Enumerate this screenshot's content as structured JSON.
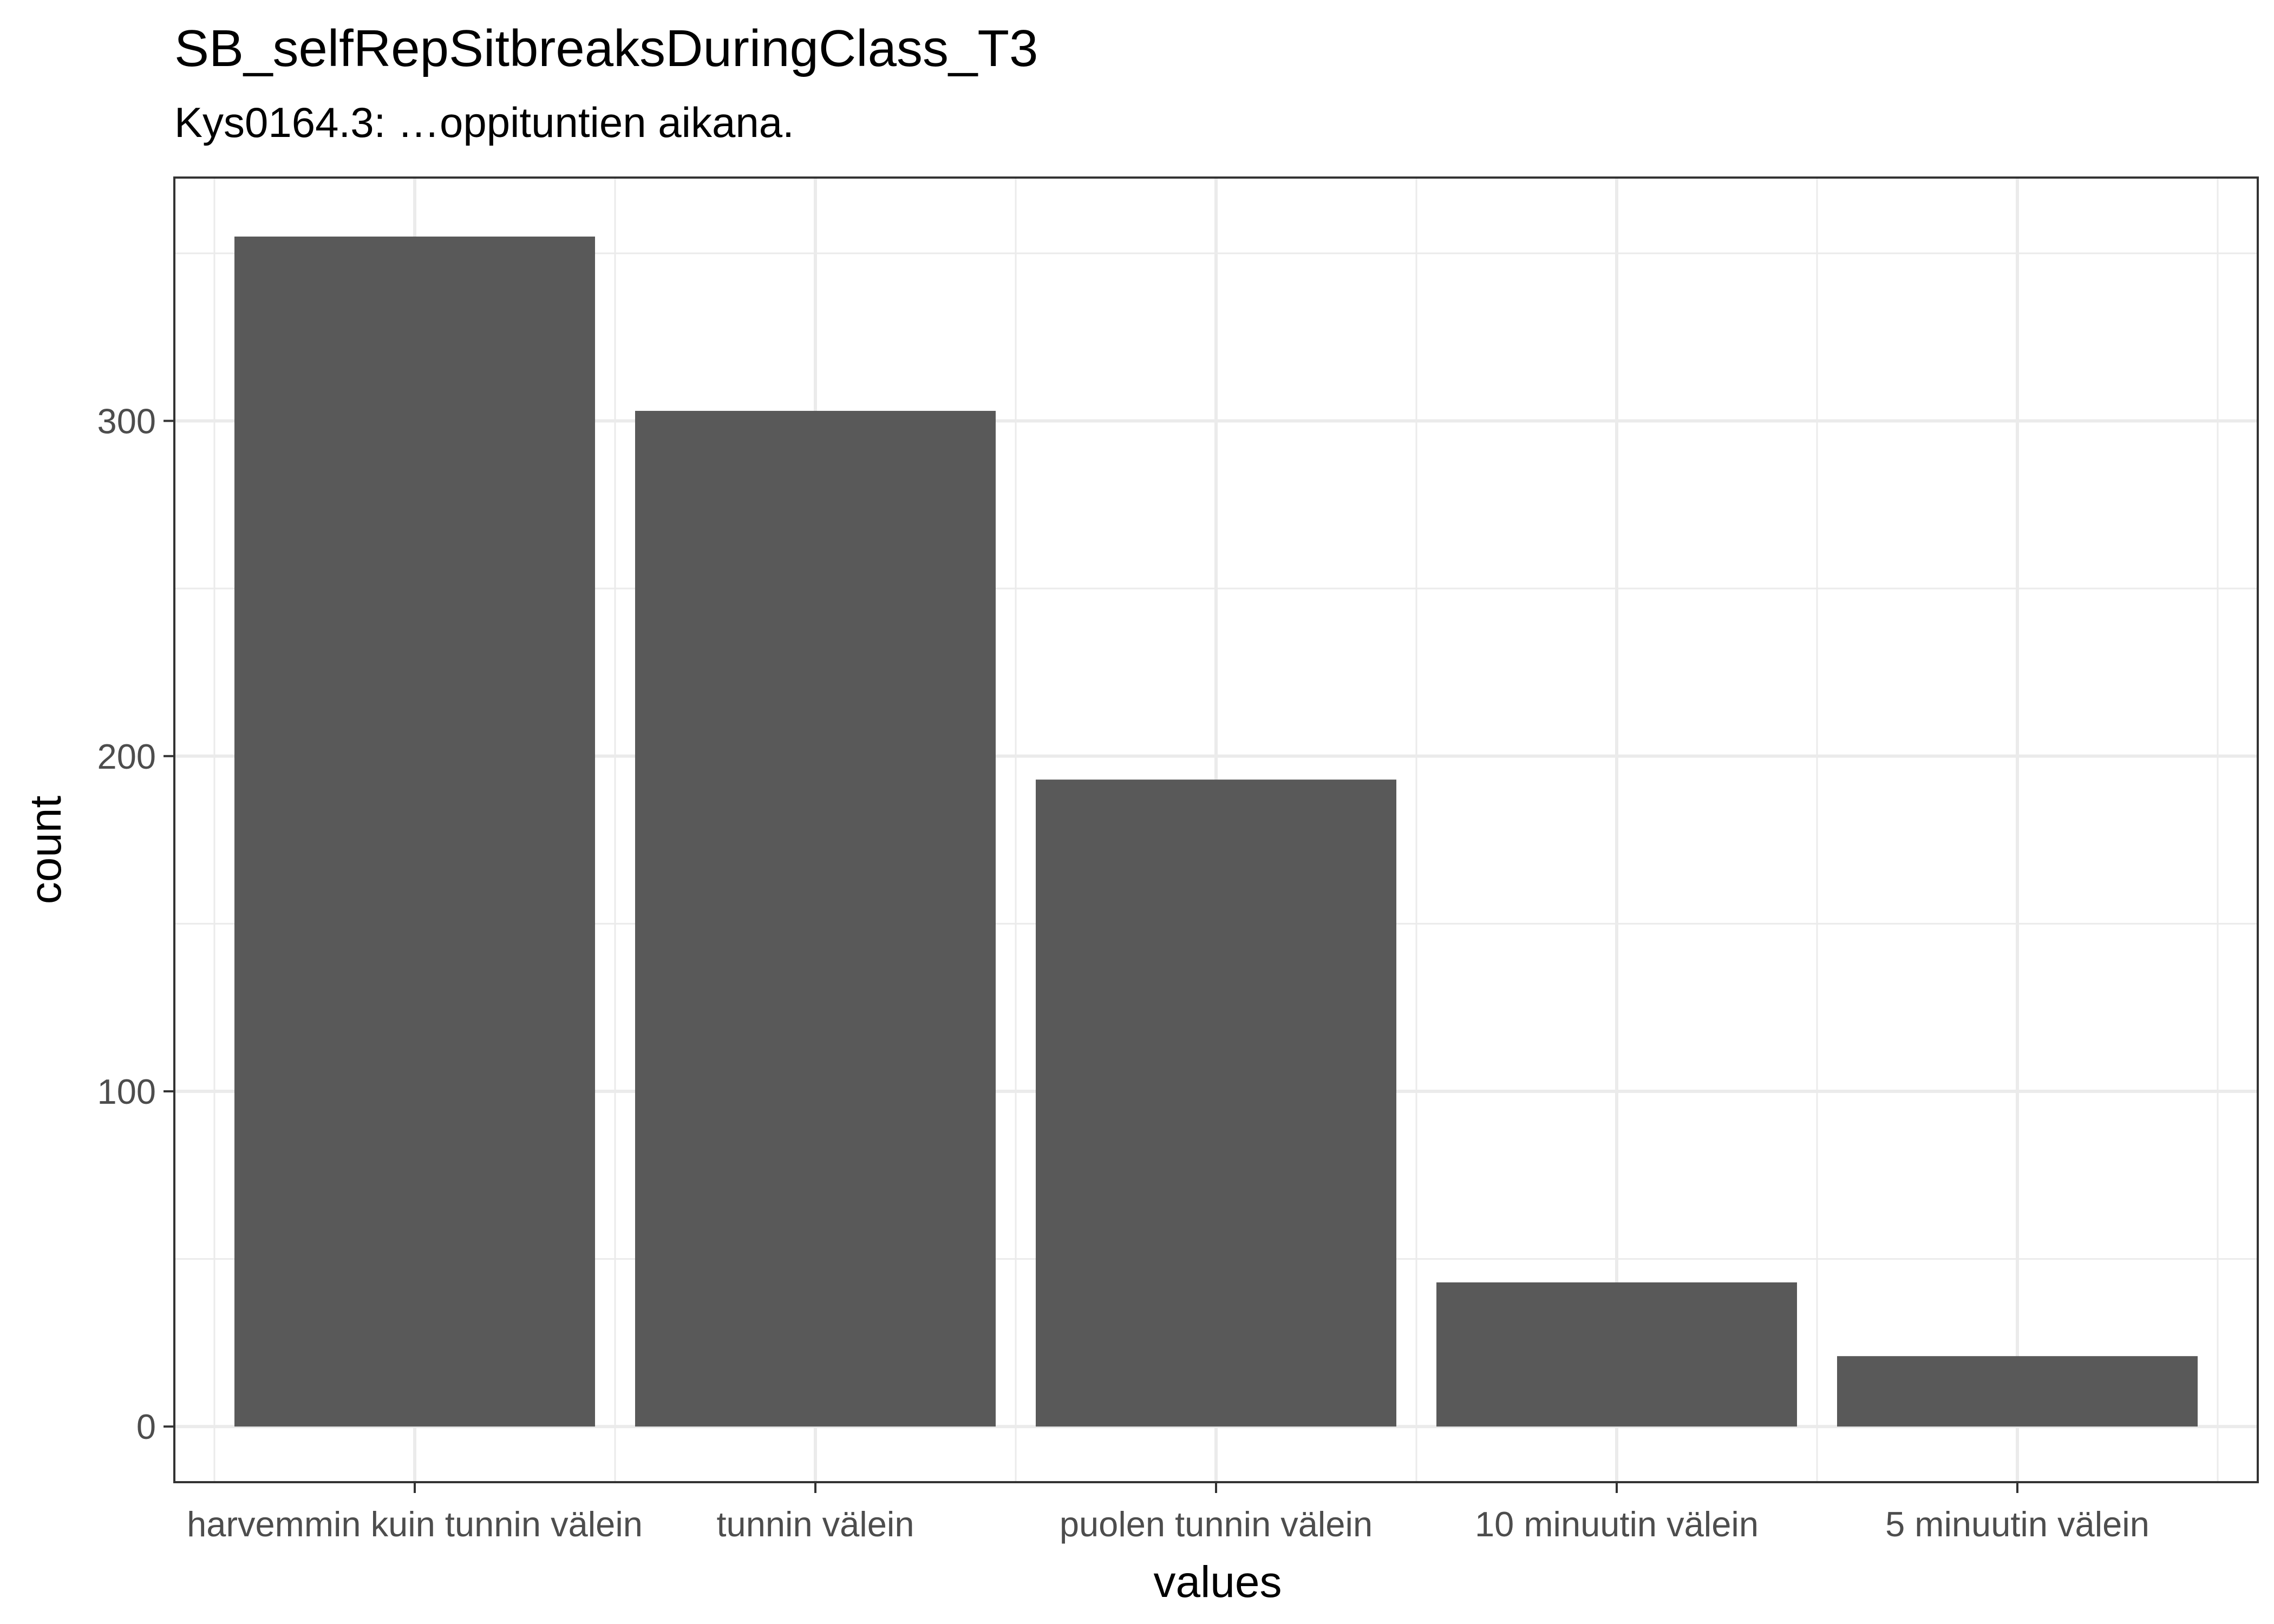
{
  "chart_data": {
    "type": "bar",
    "title": "SB_selfRepSitbreaksDuringClass_T3",
    "subtitle": "Kys0164.3: …oppituntien aikana.",
    "xlabel": "values",
    "ylabel": "count",
    "categories": [
      "harvemmin kuin tunnin välein",
      "tunnin välein",
      "puolen tunnin välein",
      "10 minuutin välein",
      "5 minuutin välein"
    ],
    "values": [
      355,
      303,
      193,
      43,
      21
    ],
    "ylim": [
      -16.6,
      372.6
    ],
    "yticks": [
      0,
      100,
      200,
      300
    ],
    "grid": true,
    "bar_color": "#595959",
    "grid_color": "#ebebeb",
    "panel_border_color": "#333333"
  }
}
